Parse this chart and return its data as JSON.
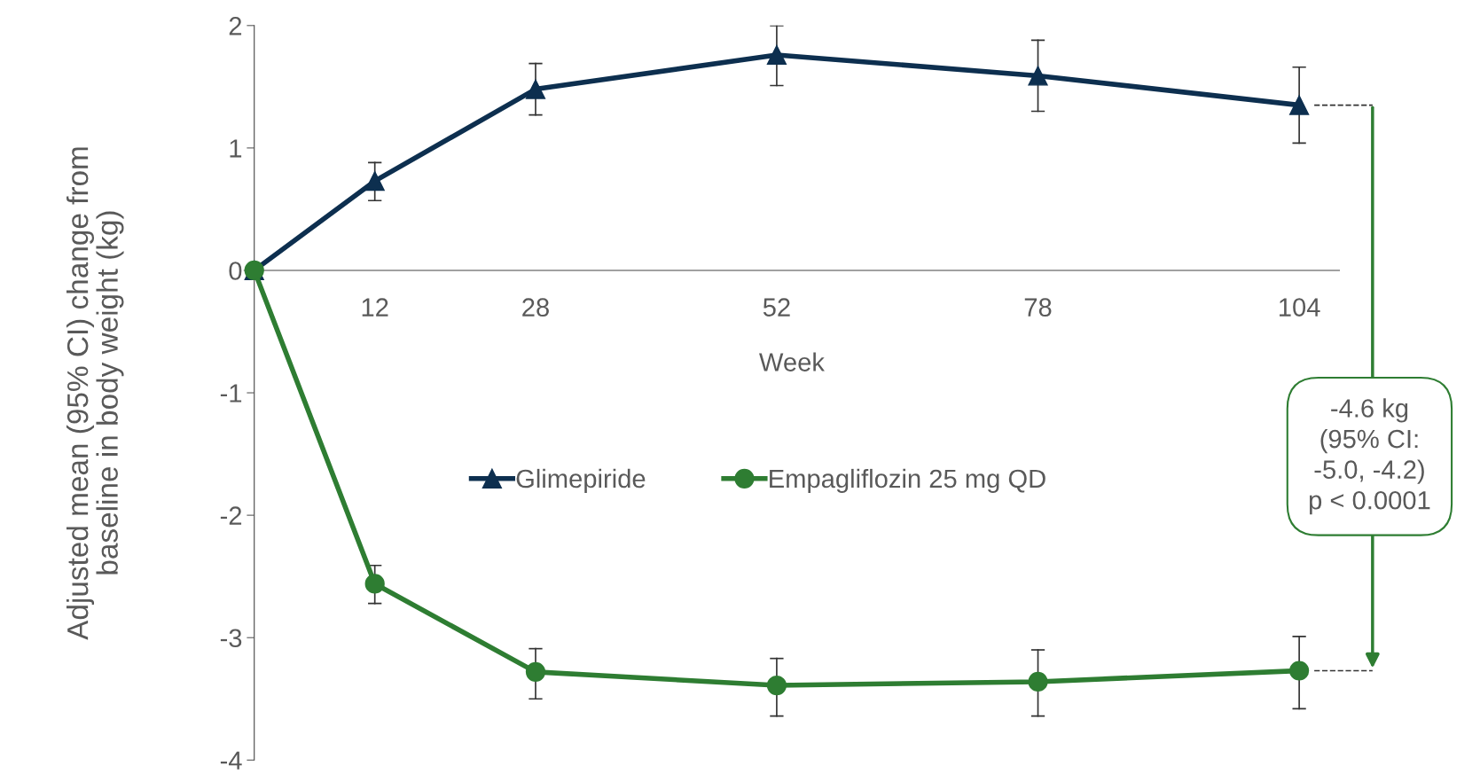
{
  "chart_data": {
    "type": "line",
    "xlabel": "Week",
    "ylabel": "Adjusted mean (95% CI) change from\nbaseline in body weight (kg)",
    "x": [
      0,
      12,
      28,
      52,
      78,
      104
    ],
    "series": [
      {
        "name": "Glimepiride",
        "color": "#0d2f4f",
        "marker": "triangle",
        "values": [
          0,
          0.73,
          1.48,
          1.76,
          1.59,
          1.35
        ],
        "errors": [
          null,
          [
            0.57,
            0.88
          ],
          [
            1.27,
            1.69
          ],
          [
            1.51,
            2.0
          ],
          [
            1.3,
            1.88
          ],
          [
            1.04,
            1.66
          ]
        ]
      },
      {
        "name": "Empagliflozin 25 mg QD",
        "color": "#2e7d32",
        "marker": "circle",
        "values": [
          0,
          -2.56,
          -3.28,
          -3.39,
          -3.36,
          -3.27
        ],
        "errors": [
          null,
          [
            -2.72,
            -2.41
          ],
          [
            -3.5,
            -3.09
          ],
          [
            -3.64,
            -3.17
          ],
          [
            -3.64,
            -3.1
          ],
          [
            -3.58,
            -2.99
          ]
        ]
      }
    ],
    "xlim": [
      -1,
      108
    ],
    "xticks": [
      12,
      28,
      52,
      78,
      104
    ],
    "ylim": [
      -4,
      2
    ],
    "yticks": [
      {
        "value": -4,
        "label": "-4"
      },
      {
        "value": -3,
        "label": "-3"
      },
      {
        "value": -2,
        "label": "-2"
      },
      {
        "value": -1,
        "label": "-1"
      },
      0,
      1,
      2
    ],
    "annotations": [
      "-4.6 kg\n(95% CI:\n-5.0, -4.2)\np < 0.0001"
    ],
    "legend": "center",
    "grid": false,
    "line_style": "solid"
  }
}
